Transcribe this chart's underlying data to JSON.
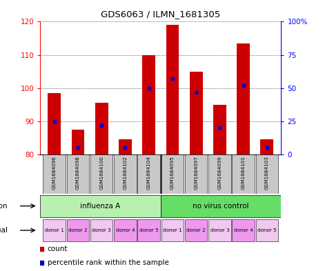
{
  "title": "GDS6063 / ILMN_1681305",
  "samples": [
    "GSM1684096",
    "GSM1684098",
    "GSM1684100",
    "GSM1684102",
    "GSM1684104",
    "GSM1684095",
    "GSM1684097",
    "GSM1684099",
    "GSM1684101",
    "GSM1684103"
  ],
  "count_values": [
    98.5,
    87.5,
    95.5,
    84.5,
    110.0,
    119.0,
    105.0,
    95.0,
    113.5,
    84.5
  ],
  "percentile_values": [
    25,
    5,
    22,
    5,
    50,
    57,
    47,
    20,
    52,
    5
  ],
  "ylim": [
    80,
    120
  ],
  "y_ticks": [
    80,
    90,
    100,
    110,
    120
  ],
  "y2_ticks": [
    0,
    25,
    50,
    75,
    100
  ],
  "individual_labels": [
    "donor 1",
    "donor 2",
    "donor 3",
    "donor 4",
    "donor 5",
    "donor 1",
    "donor 2",
    "donor 3",
    "donor 4",
    "donor 5"
  ],
  "bar_color": "#cc0000",
  "percentile_color": "#0000cc",
  "bg_color": "#ffffff",
  "sample_bg_color": "#c8c8c8",
  "inf_color_a": "#b8f0b0",
  "inf_color_b": "#66dd66",
  "ind_color_light": "#f0c8f0",
  "ind_color_dark": "#ee99ee"
}
